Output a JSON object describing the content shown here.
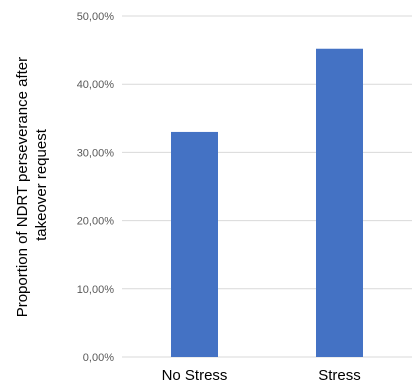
{
  "chart_data": {
    "type": "bar",
    "categories": [
      "No Stress",
      "Stress"
    ],
    "values": [
      0.33,
      0.452
    ],
    "title": "",
    "xlabel": "",
    "ylabel_lines": [
      "Proportion of NDRT perseverance after",
      "takeover request"
    ],
    "ylim": [
      0,
      0.5
    ],
    "yticks": [
      0,
      0.1,
      0.2,
      0.3,
      0.4,
      0.5
    ],
    "ytick_labels": [
      "0,00%",
      "10,00%",
      "20,00%",
      "30,00%",
      "40,00%",
      "50,00%"
    ],
    "grid": true,
    "legend": "none",
    "colors": {
      "bar": "#4472C4",
      "grid": "#D9D9D9",
      "tick_text": "#595959"
    }
  }
}
